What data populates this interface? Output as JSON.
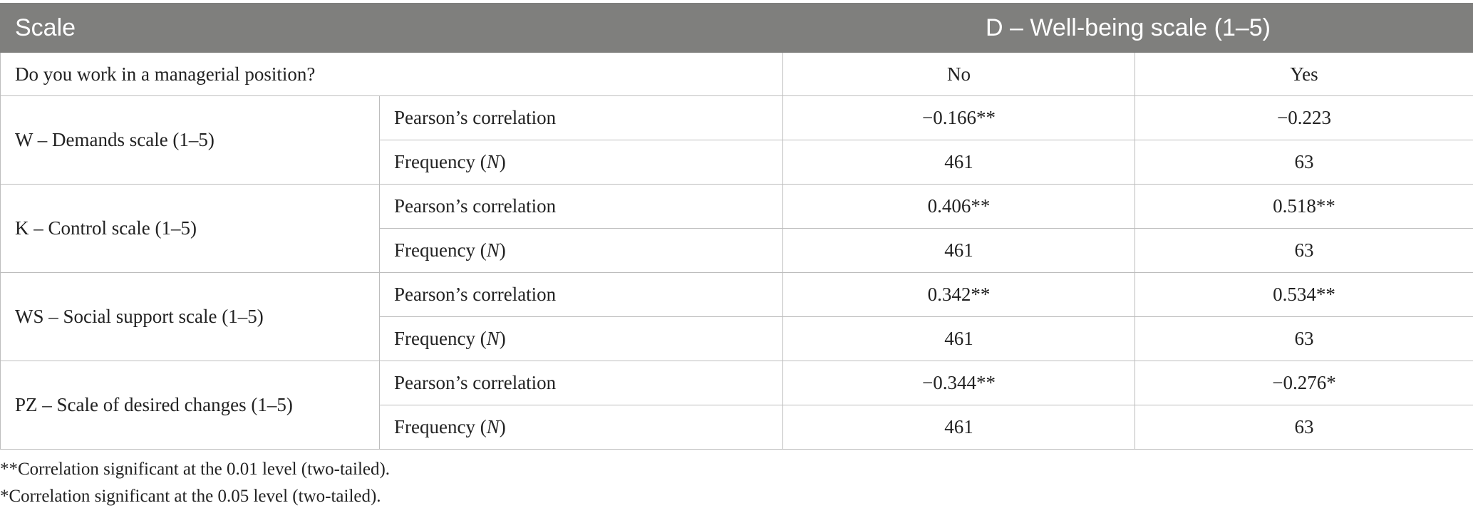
{
  "table": {
    "header": {
      "scale": "Scale",
      "wellbeing": "D – Well-being scale (1–5)"
    },
    "subheader": {
      "question": "Do you work in a managerial position?",
      "no": "No",
      "yes": "Yes"
    },
    "stat_labels": {
      "pearson": "Pearson’s correlation",
      "frequency_prefix": "Frequency (",
      "frequency_n": "N",
      "frequency_suffix": ")"
    },
    "rows": [
      {
        "scale": "W – Demands scale (1–5)",
        "pearson_no": "−0.166**",
        "pearson_yes": "−0.223",
        "n_no": "461",
        "n_yes": "63"
      },
      {
        "scale": "K – Control scale (1–5)",
        "pearson_no": "0.406**",
        "pearson_yes": "0.518**",
        "n_no": "461",
        "n_yes": "63"
      },
      {
        "scale": "WS – Social support scale (1–5)",
        "pearson_no": "0.342**",
        "pearson_yes": "0.534**",
        "n_no": "461",
        "n_yes": "63"
      },
      {
        "scale": "PZ – Scale of desired changes (1–5)",
        "pearson_no": "−0.344**",
        "pearson_yes": "−0.276*",
        "n_no": "461",
        "n_yes": "63"
      }
    ]
  },
  "notes": [
    "**Correlation significant at the 0.01 level (two-tailed).",
    "*Correlation significant at the 0.05 level (two-tailed)."
  ]
}
